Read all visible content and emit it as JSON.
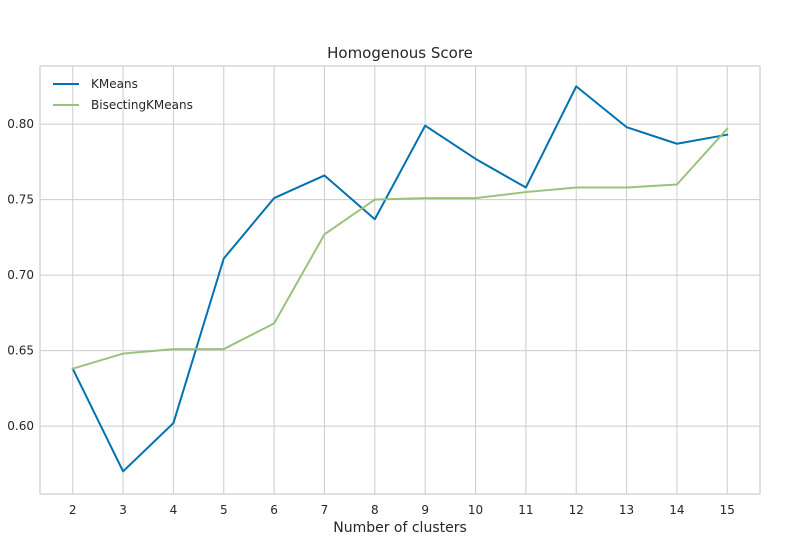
{
  "chart_data": {
    "type": "line",
    "title": "Homogenous Score",
    "xlabel": "Number of clusters",
    "ylabel": "",
    "x": [
      2,
      3,
      4,
      5,
      6,
      7,
      8,
      9,
      10,
      11,
      12,
      13,
      14,
      15
    ],
    "xticks": [
      "2",
      "3",
      "4",
      "5",
      "6",
      "7",
      "8",
      "9",
      "10",
      "11",
      "12",
      "13",
      "14",
      "15"
    ],
    "yticks": [
      "0.60",
      "0.65",
      "0.70",
      "0.75",
      "0.80"
    ],
    "ytick_values": [
      0.6,
      0.65,
      0.7,
      0.75,
      0.8
    ],
    "xlim": [
      1.35,
      15.65
    ],
    "ylim": [
      0.555,
      0.8385
    ],
    "grid": true,
    "legend_position": "top-left",
    "series": [
      {
        "name": "KMeans",
        "color": "#0072b2",
        "values": [
          0.638,
          0.57,
          0.602,
          0.711,
          0.751,
          0.766,
          0.737,
          0.799,
          0.777,
          0.758,
          0.825,
          0.798,
          0.787,
          0.793
        ]
      },
      {
        "name": "BisectingKMeans",
        "color": "#99c37c",
        "values": [
          0.638,
          0.648,
          0.651,
          0.651,
          0.668,
          0.727,
          0.75,
          0.751,
          0.751,
          0.755,
          0.758,
          0.758,
          0.76,
          0.797
        ]
      }
    ]
  }
}
